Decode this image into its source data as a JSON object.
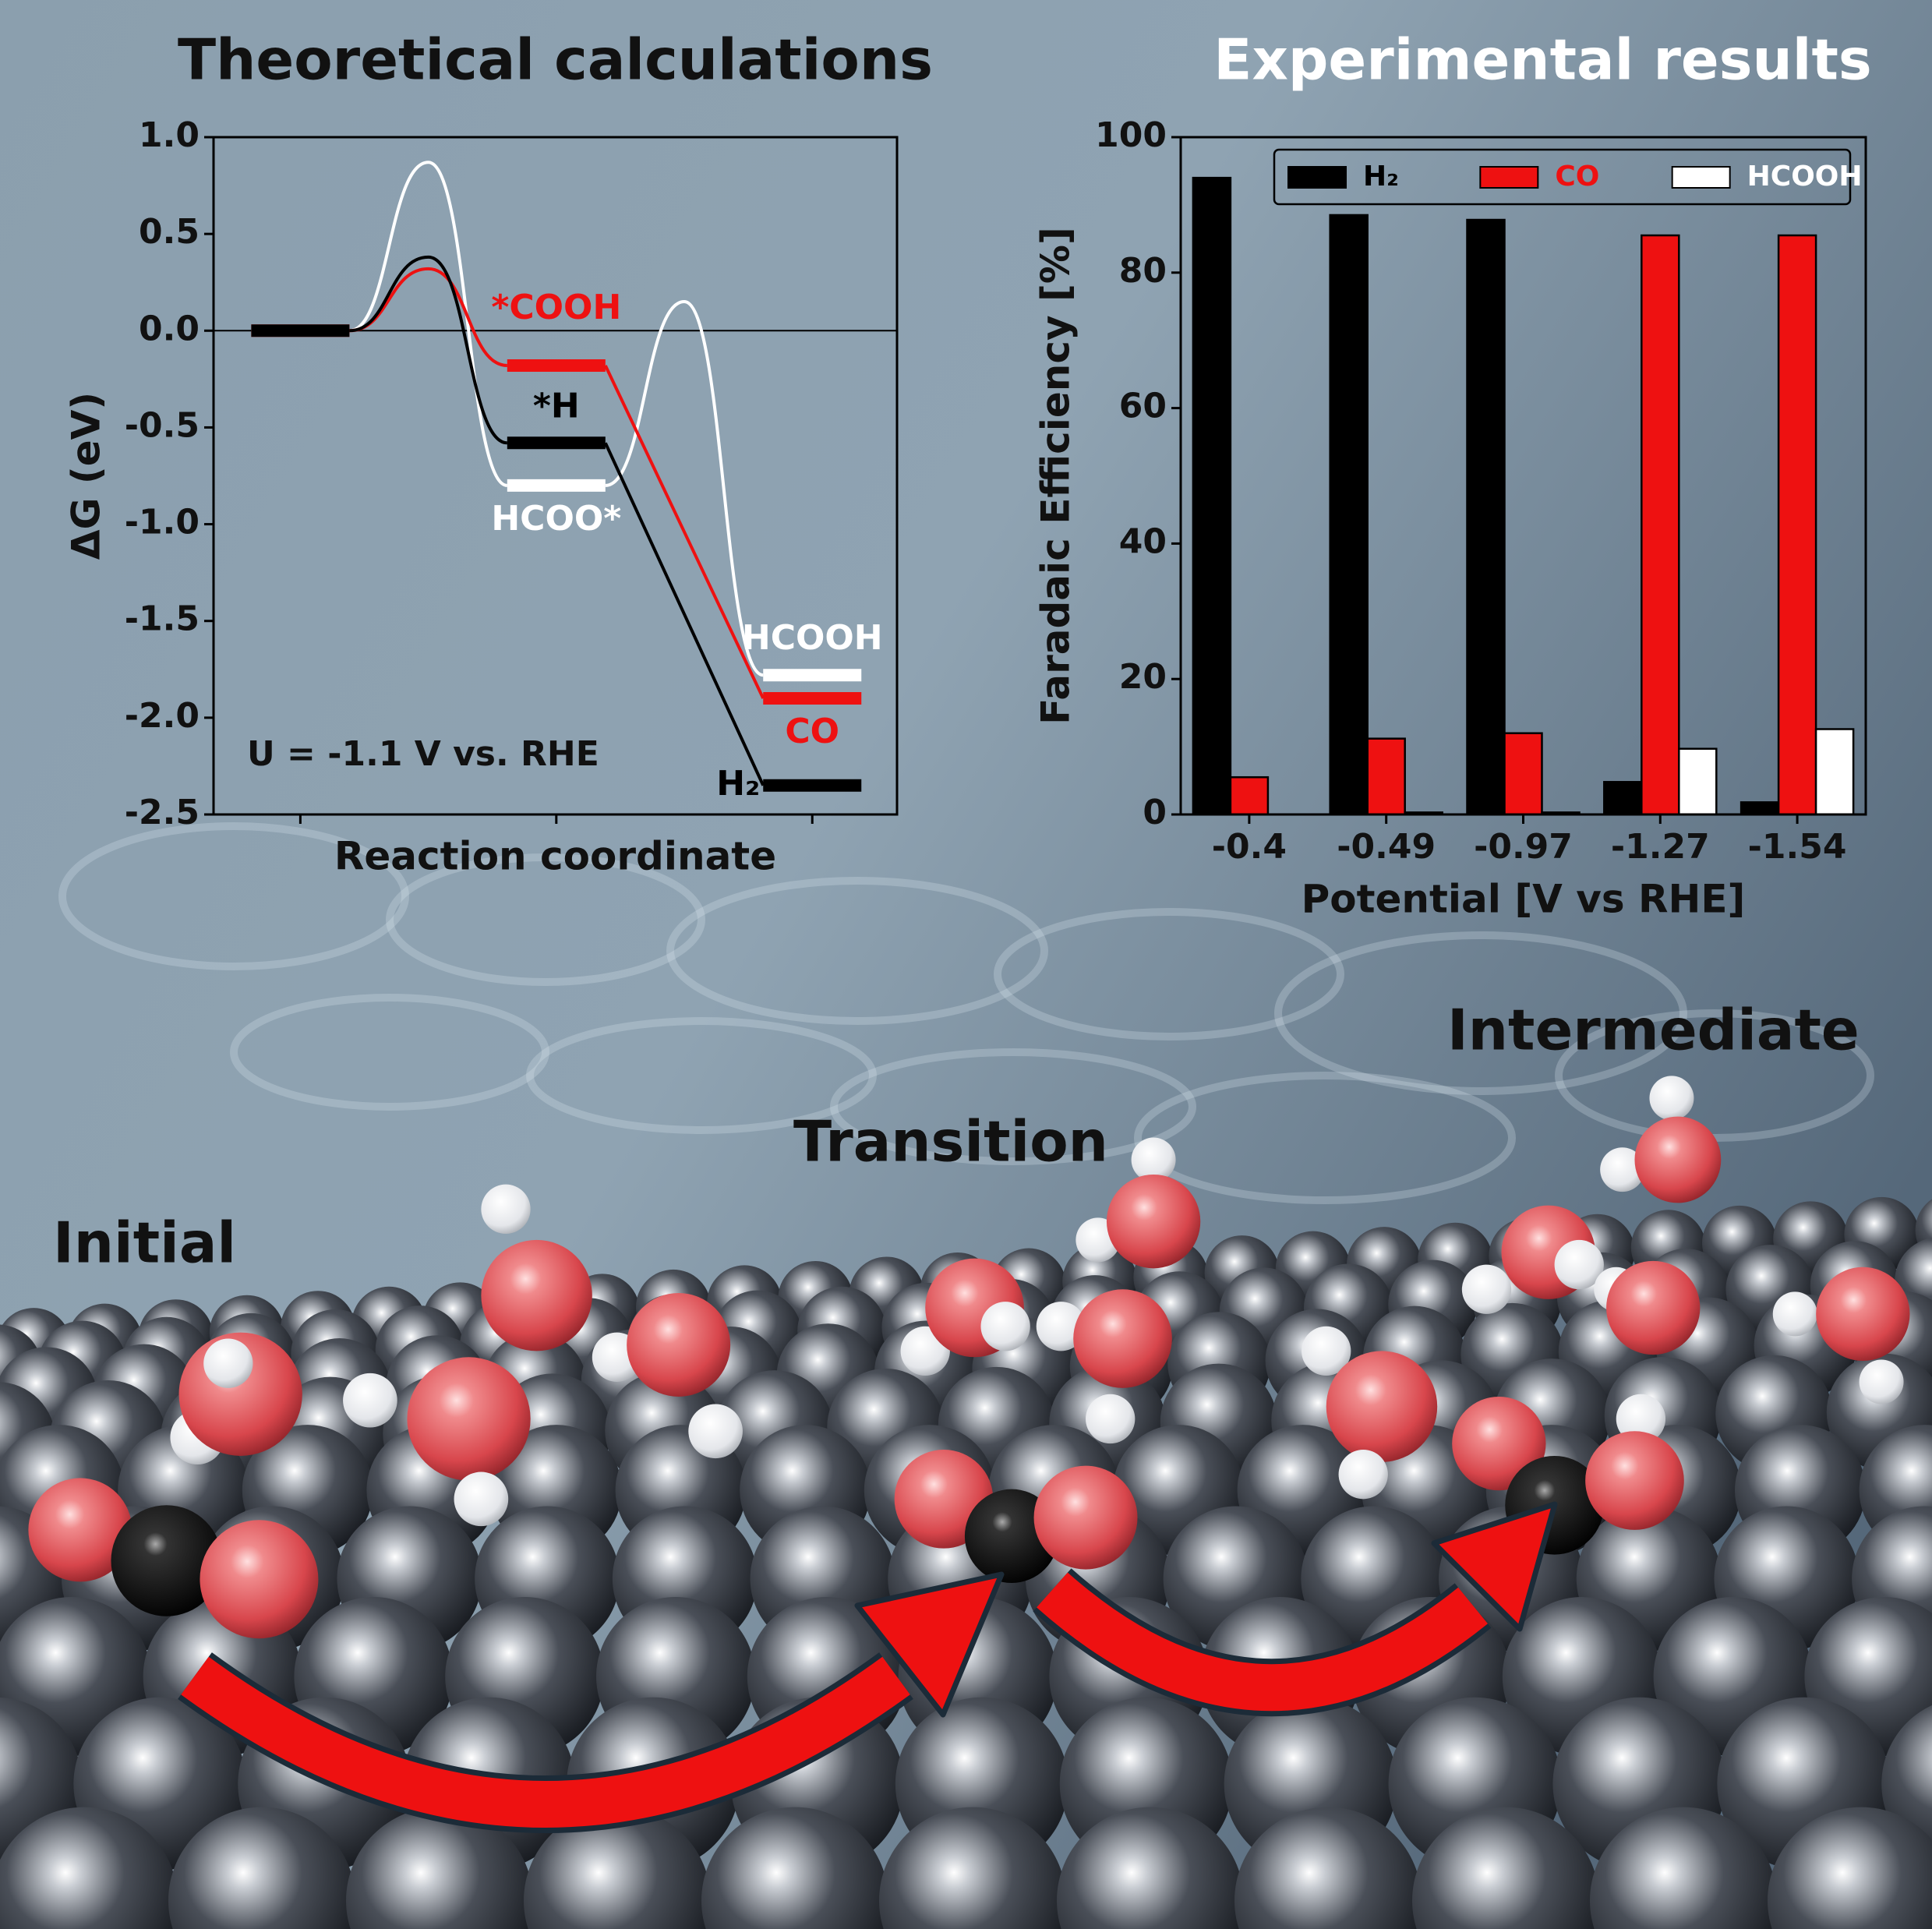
{
  "chart_data": [
    {
      "type": "energy",
      "title": "Theoretical calculations",
      "x_label": "Reaction coordinate",
      "y_label": "ΔG (eV)",
      "annotation": "U = -1.1 V vs. RHE",
      "categories": [
        null,
        null,
        null
      ],
      "ylim": [
        -2.5,
        1
      ],
      "yticks": [
        -2.5,
        {
          "value": -2,
          "label": "-2.0"
        },
        -1.5,
        {
          "value": -1,
          "label": "-1.0"
        },
        -0.5,
        {
          "value": 0,
          "label": "0.0"
        },
        0.5,
        {
          "value": 1,
          "label": "1.0"
        }
      ],
      "hline": 0,
      "series": [
        {
          "name": "HCOOH",
          "color": "#ffffff",
          "values": [
            0,
            -0.8,
            -1.78
          ],
          "barriers": [
            0.87,
            0.15
          ],
          "intermediate": "HCOO*"
        },
        {
          "name": "CO",
          "color": "#ee1111",
          "values": [
            0,
            -0.18,
            -1.9
          ],
          "barriers": [
            0.32,
            null
          ],
          "intermediate": "*COOH"
        },
        {
          "name": "H₂",
          "color": "#000000",
          "values": [
            0,
            -0.58,
            -2.35
          ],
          "barriers": [
            0.38,
            null
          ],
          "intermediate": "*H"
        }
      ]
    },
    {
      "type": "bar",
      "title": "Experimental results",
      "x_label": "Potential [V vs RHE]",
      "y_label": "Faradaic Efficiency [%]",
      "categories": [
        "-0.4",
        "-0.49",
        "-0.97",
        "-1.27",
        "-1.54"
      ],
      "ylim": [
        0,
        100
      ],
      "yticks": [
        0,
        20,
        40,
        60,
        80,
        100
      ],
      "legend": "top",
      "series": [
        {
          "name": "H₂",
          "color": "#000000",
          "values": [
            94,
            88.5,
            87.8,
            4.8,
            1.8
          ]
        },
        {
          "name": "CO",
          "color": "#ee1111",
          "values": [
            5.5,
            11.2,
            12,
            85.5,
            85.5
          ]
        },
        {
          "name": "HCOOH",
          "color": "#ffffff",
          "values": [
            0,
            0.3,
            0.3,
            9.7,
            12.6
          ]
        }
      ]
    }
  ],
  "scene": {
    "labels": [
      "Initial",
      "Transition",
      "Intermediate"
    ]
  }
}
